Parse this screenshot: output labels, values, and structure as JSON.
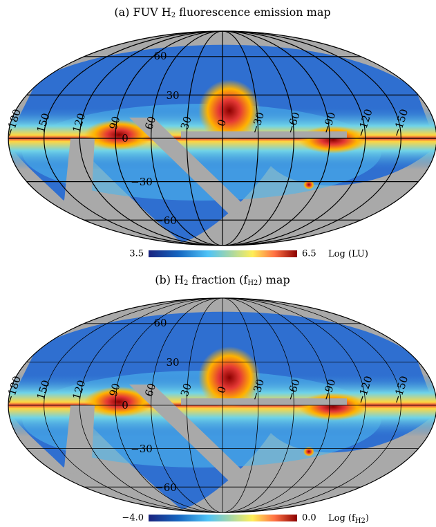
{
  "panels": [
    {
      "title": [
        {
          "text": "(a) FUV H"
        },
        {
          "text": "2",
          "sub": true
        },
        {
          "text": " fluorescence emission map"
        }
      ],
      "longitude_labels": [
        "−180",
        "150",
        "120",
        "90",
        "60",
        "30",
        "0",
        "−30",
        "−60",
        "−90",
        "−120",
        "−150"
      ],
      "latitude_labels": [
        "60",
        "30",
        "0",
        "−30",
        "−60"
      ],
      "colorbar": {
        "min": "3.5",
        "max": "6.5",
        "unit": [
          {
            "text": "Log (LU)"
          }
        ]
      }
    },
    {
      "title": [
        {
          "text": "(b)  H"
        },
        {
          "text": "2",
          "sub": true
        },
        {
          "text": " fraction (f"
        },
        {
          "text": "H2",
          "sub": true
        },
        {
          "text": ") map"
        }
      ],
      "longitude_labels": [
        "−180",
        "150",
        "120",
        "90",
        "60",
        "30",
        "0",
        "−30",
        "−60",
        "−90",
        "−120",
        "−150"
      ],
      "latitude_labels": [
        "60",
        "30",
        "0",
        "−30",
        "−60"
      ],
      "colorbar": {
        "min": "−4.0",
        "max": "0.0",
        "unit": [
          {
            "text": "Log (f"
          },
          {
            "text": "H2",
            "sub": true
          },
          {
            "text": ")"
          }
        ]
      }
    }
  ]
}
